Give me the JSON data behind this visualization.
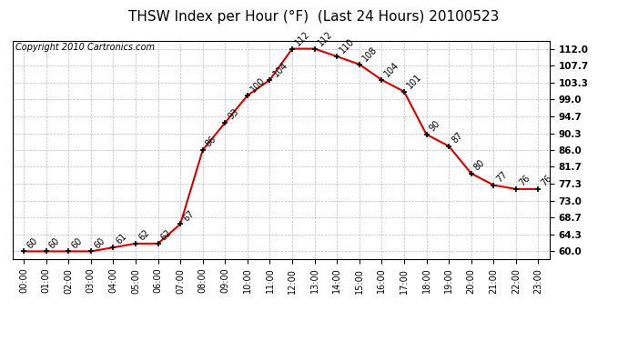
{
  "title": "THSW Index per Hour (°F)  (Last 24 Hours) 20100523",
  "copyright": "Copyright 2010 Cartronics.com",
  "hours": [
    "00:00",
    "01:00",
    "02:00",
    "03:00",
    "04:00",
    "05:00",
    "06:00",
    "07:00",
    "08:00",
    "09:00",
    "10:00",
    "11:00",
    "12:00",
    "13:00",
    "14:00",
    "15:00",
    "16:00",
    "17:00",
    "18:00",
    "19:00",
    "20:00",
    "21:00",
    "22:00",
    "23:00"
  ],
  "values": [
    60,
    60,
    60,
    60,
    61,
    62,
    62,
    67,
    86,
    93,
    100,
    104,
    112,
    112,
    110,
    108,
    104,
    101,
    90,
    87,
    80,
    77,
    76,
    76
  ],
  "labels": [
    "60",
    "60",
    "60",
    "60",
    "61",
    "62",
    "62",
    "67",
    "86",
    "93",
    "100",
    "104",
    "112",
    "112",
    "110",
    "108",
    "104",
    "101",
    "90",
    "87",
    "80",
    "77",
    "76",
    "76"
  ],
  "line_color": "#cc0000",
  "marker_color": "#000000",
  "bg_color": "#ffffff",
  "grid_color": "#bbbbbb",
  "yticks": [
    60.0,
    64.3,
    68.7,
    73.0,
    77.3,
    81.7,
    86.0,
    90.3,
    94.7,
    99.0,
    103.3,
    107.7,
    112.0
  ],
  "ylim": [
    58.0,
    114.0
  ],
  "title_fontsize": 11,
  "label_fontsize": 7,
  "copyright_fontsize": 7,
  "tick_fontsize": 7.5,
  "xtick_fontsize": 7
}
